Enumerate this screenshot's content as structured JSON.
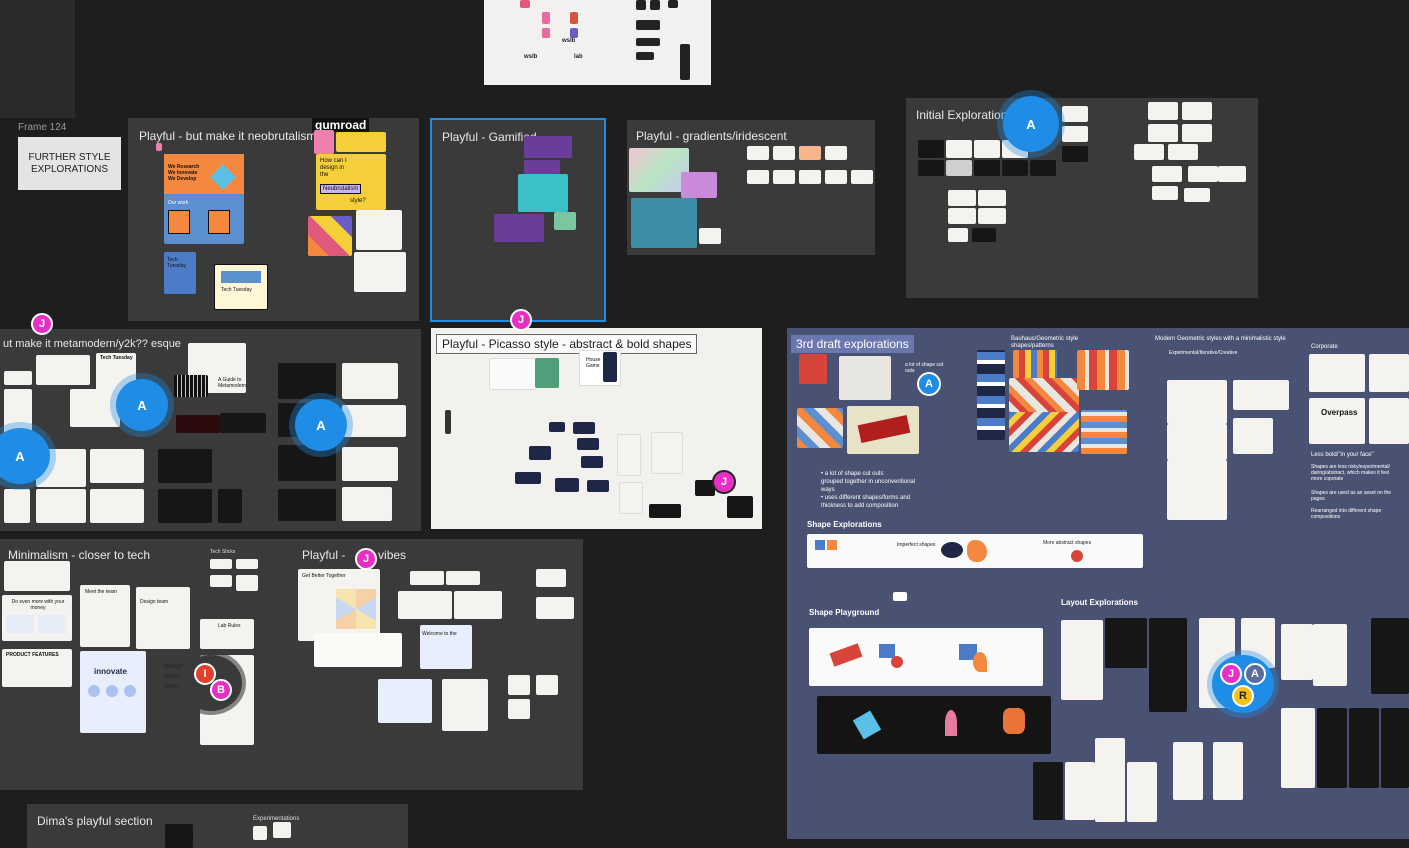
{
  "frames": {
    "frame124_label": "Frame 124",
    "further_style": "FURTHER STYLE EXPLORATIONS",
    "neobrutalism": "Playful - but make it neobrutalism",
    "gamified": "Playful - Gamified",
    "gradients": "Playful - gradients/iridescent",
    "initial": "Initial Exploration",
    "metamodern": "ut make it metamodern/y2k?? esque",
    "picasso": "Playful -  Picasso style - abstract & bold shapes",
    "draft3": "3rd draft explorations",
    "minimalism": "Minimalism - closer to tech",
    "playful_vibes": "Playful - ",
    "playful_vibes_tail": "vibes",
    "dima": "Dima's playful section"
  },
  "neobrutal_content": {
    "gumroad": "gumroad",
    "hero": "We Research\nWe Innovate\nWe Develop",
    "our_work": "Our work",
    "how_can": "How can I design in the",
    "neubrutalism": "Neubrutalism",
    "style": "style?",
    "tech_tuesday": "Tech Tuesday",
    "tech_tuesday2": "Tech Tuesday"
  },
  "meta_content": {
    "tech_tuesday": "Tech Tuesday",
    "guide": "A Guide to Metamodern"
  },
  "picasso_content": {
    "house": "House Game"
  },
  "draft3_content": {
    "bauhaus": "Bauhaus/Geometric style shapes/patterns",
    "modern_geo": "Modern Geometric styles with a minimalistic style",
    "corporate": "Corporate",
    "experimental": "Experimental/Iterative/Creative",
    "a_lot": "a lot of shape cut outs",
    "bullets": "• a lot of shape cut outs\n  grouped together in unconventional\n  ways\n• uses different shapes/forms and\n  thickness to add composition",
    "shape_exp": "Shape Explorations",
    "imperfect": "Imperfect shapes",
    "more_abstract": "More abstract shapes",
    "shape_playground": "Shape Playground",
    "layout_exp": "Layout Explorations",
    "less_bold": "Less bold/\"in your face\"",
    "shapes_less": "Shapes are less risky/experimental/ daring/abstract, which makes it feel more coporate",
    "shapes_asset": "Shapes are used as an asset on the pages",
    "rearranged": "Rearranged into different shape compositions",
    "overpass": "Overpass"
  },
  "minimal_content": {
    "meet": "Meet the team",
    "design_team": "Design team",
    "innovate": "innovate",
    "product_features": "PRODUCT FEATURES",
    "do_even_more": "Do even more with your money",
    "tech_sticks": "Tech Sticks",
    "lab_rules": "Lab Rules",
    "design_lbl": "design",
    "research_lbl": "resear",
    "develop_lbl": "devel"
  },
  "vibes_content": {
    "get_better": "Get Better Together",
    "welcome": "Welcome to the"
  },
  "dima_content": {
    "experimentations": "Experimentations"
  },
  "wslb_logo": "wslb",
  "lab_logo": "lab",
  "cursors": {
    "a": "A",
    "j": "J",
    "i": "I",
    "b": "B",
    "r": "R"
  },
  "colors": {
    "canvas": "#1e1e1e",
    "selection": "#1f8ce6",
    "cursor_pink": "#e72ec5",
    "navy_frame": "#4a5273"
  }
}
